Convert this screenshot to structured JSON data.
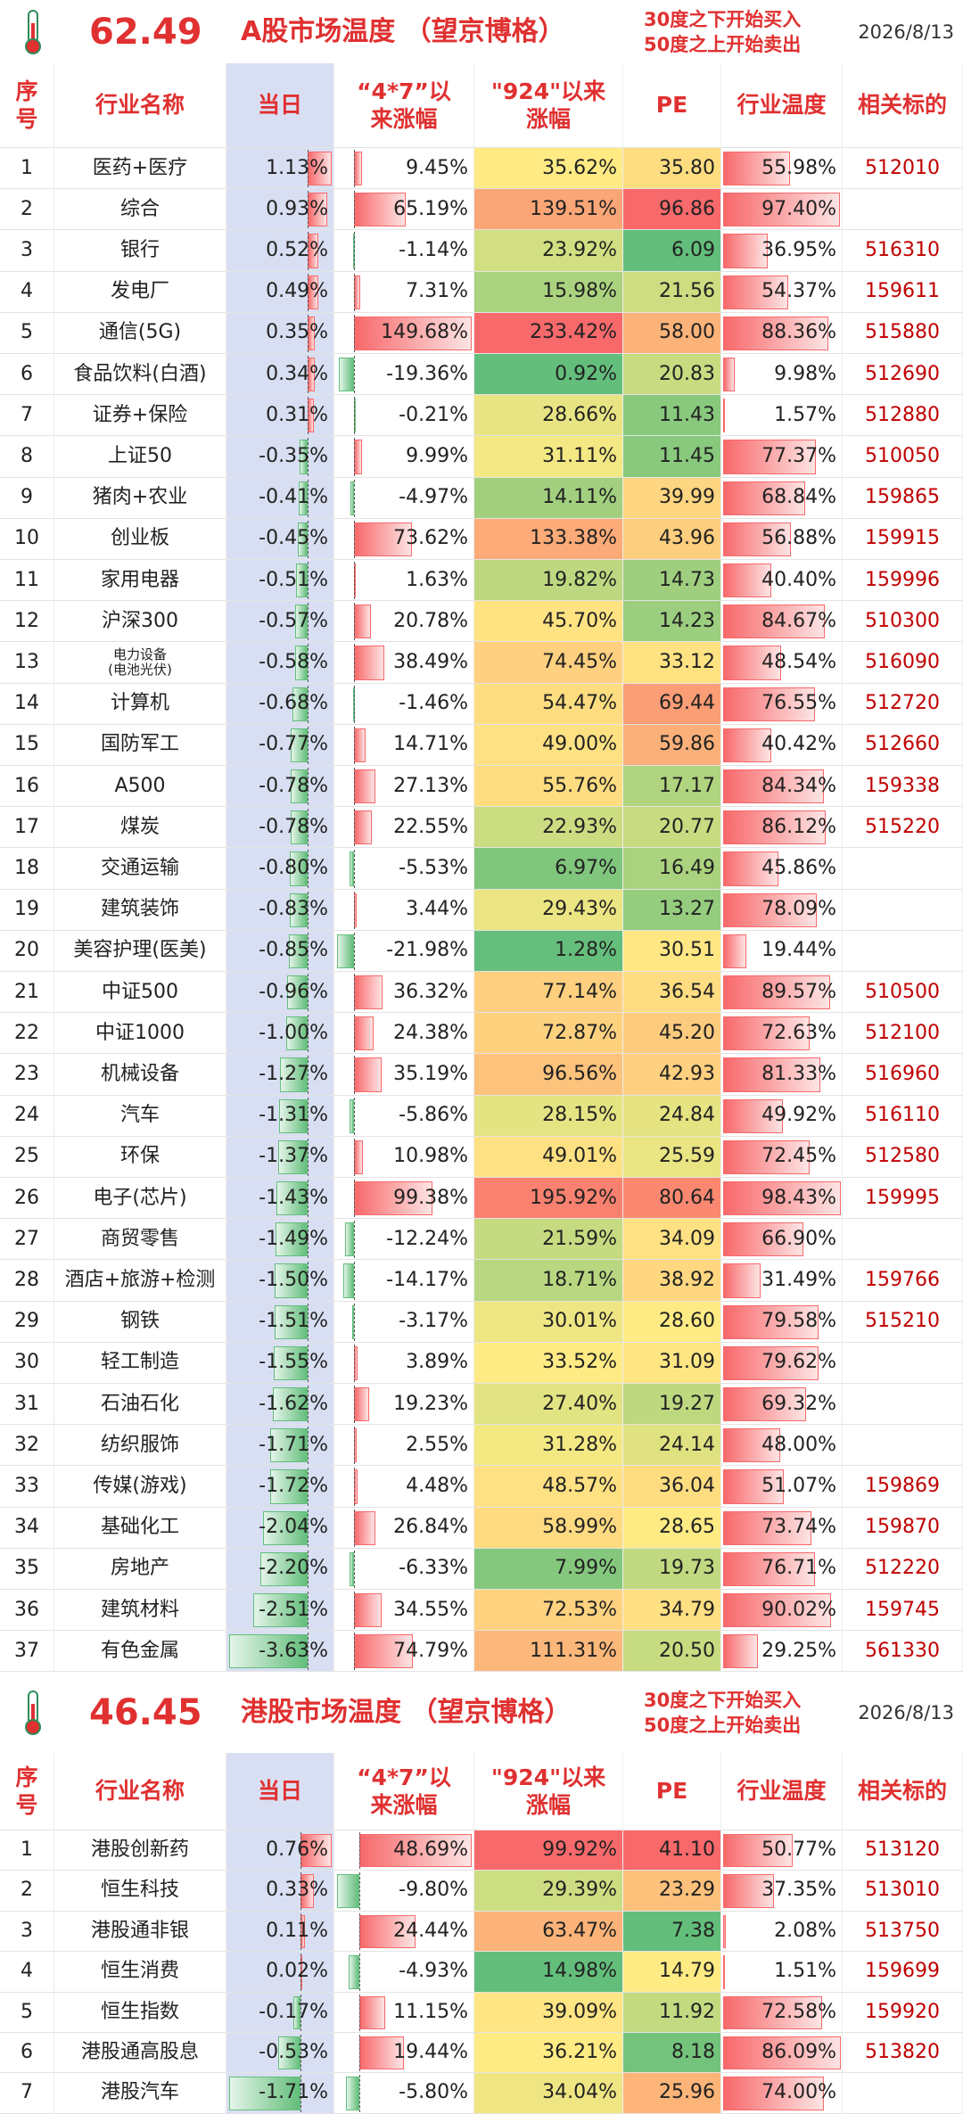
{
  "sections": [
    {
      "temperature": "62.49",
      "title": "A股市场温度 （望京博格）",
      "note": [
        "30度之下开始买入",
        "50度之上开始卖出"
      ],
      "date": "2026/8/13",
      "columns": [
        "序\n号",
        "行业名称",
        "当日",
        "“4*7”以\n来涨幅",
        "\"924\"以来\n涨幅",
        "PE",
        "行业温度",
        "相关标的"
      ],
      "rows": [
        [
          "1",
          "医药+医疗",
          "1.13%",
          "9.45%",
          "35.62%",
          "35.80",
          "55.98%",
          "512010"
        ],
        [
          "2",
          "综合",
          "0.93%",
          "65.19%",
          "139.51%",
          "96.86",
          "97.40%",
          null
        ],
        [
          "3",
          "银行",
          "0.52%",
          "-1.14%",
          "23.92%",
          "6.09",
          "36.95%",
          "516310"
        ],
        [
          "4",
          "发电厂",
          "0.49%",
          "7.31%",
          "15.98%",
          "21.56",
          "54.37%",
          "159611"
        ],
        [
          "5",
          "通信(5G)",
          "0.35%",
          "149.68%",
          "233.42%",
          "58.00",
          "88.36%",
          "515880"
        ],
        [
          "6",
          "食品饮料(白酒)",
          "0.34%",
          "-19.36%",
          "0.92%",
          "20.83",
          "9.98%",
          "512690"
        ],
        [
          "7",
          "证券+保险",
          "0.31%",
          "-0.21%",
          "28.66%",
          "11.43",
          "1.57%",
          "512880"
        ],
        [
          "8",
          "上证50",
          "-0.35%",
          "9.99%",
          "31.11%",
          "11.45",
          "77.37%",
          "510050"
        ],
        [
          "9",
          "猪肉+农业",
          "-0.41%",
          "-4.97%",
          "14.11%",
          "39.99",
          "68.84%",
          "159865"
        ],
        [
          "10",
          "创业板",
          "-0.45%",
          "73.62%",
          "133.38%",
          "43.96",
          "56.88%",
          "159915"
        ],
        [
          "11",
          "家用电器",
          "-0.51%",
          "1.63%",
          "19.82%",
          "14.73",
          "40.40%",
          "159996"
        ],
        [
          "12",
          "沪深300",
          "-0.57%",
          "20.78%",
          "45.70%",
          "14.23",
          "84.67%",
          "510300"
        ],
        [
          "13",
          "电力设备\n(电池光伏)",
          "-0.58%",
          "38.49%",
          "74.45%",
          "33.12",
          "48.54%",
          "516090"
        ],
        [
          "14",
          "计算机",
          "-0.68%",
          "-1.46%",
          "54.47%",
          "69.44",
          "76.55%",
          "512720"
        ],
        [
          "15",
          "国防军工",
          "-0.77%",
          "14.71%",
          "49.00%",
          "59.86",
          "40.42%",
          "512660"
        ],
        [
          "16",
          "A500",
          "-0.78%",
          "27.13%",
          "55.76%",
          "17.17",
          "84.34%",
          "159338"
        ],
        [
          "17",
          "煤炭",
          "-0.78%",
          "22.55%",
          "22.93%",
          "20.77",
          "86.12%",
          "515220"
        ],
        [
          "18",
          "交通运输",
          "-0.80%",
          "-5.53%",
          "6.97%",
          "16.49",
          "45.86%",
          null
        ],
        [
          "19",
          "建筑装饰",
          "-0.83%",
          "3.44%",
          "29.43%",
          "13.27",
          "78.09%",
          null
        ],
        [
          "20",
          "美容护理(医美)",
          "-0.85%",
          "-21.98%",
          "1.28%",
          "30.51",
          "19.44%",
          null
        ],
        [
          "21",
          "中证500",
          "-0.96%",
          "36.32%",
          "77.14%",
          "36.54",
          "89.57%",
          "510500"
        ],
        [
          "22",
          "中证1000",
          "-1.00%",
          "24.38%",
          "72.87%",
          "45.20",
          "72.63%",
          "512100"
        ],
        [
          "23",
          "机械设备",
          "-1.27%",
          "35.19%",
          "96.56%",
          "42.93",
          "81.33%",
          "516960"
        ],
        [
          "24",
          "汽车",
          "-1.31%",
          "-5.86%",
          "28.15%",
          "24.84",
          "49.92%",
          "516110"
        ],
        [
          "25",
          "环保",
          "-1.37%",
          "10.98%",
          "49.01%",
          "25.59",
          "72.45%",
          "512580"
        ],
        [
          "26",
          "电子(芯片)",
          "-1.43%",
          "99.38%",
          "195.92%",
          "80.64",
          "98.43%",
          "159995"
        ],
        [
          "27",
          "商贸零售",
          "-1.49%",
          "-12.24%",
          "21.59%",
          "34.09",
          "66.90%",
          null
        ],
        [
          "28",
          "酒店+旅游+检测",
          "-1.50%",
          "-14.17%",
          "18.71%",
          "38.92",
          "31.49%",
          "159766"
        ],
        [
          "29",
          "钢铁",
          "-1.51%",
          "-3.17%",
          "30.01%",
          "28.60",
          "79.58%",
          "515210"
        ],
        [
          "30",
          "轻工制造",
          "-1.55%",
          "3.89%",
          "33.52%",
          "31.09",
          "79.62%",
          null
        ],
        [
          "31",
          "石油石化",
          "-1.62%",
          "19.23%",
          "27.40%",
          "19.27",
          "69.32%",
          null
        ],
        [
          "32",
          "纺织服饰",
          "-1.71%",
          "2.55%",
          "31.28%",
          "24.14",
          "48.00%",
          null
        ],
        [
          "33",
          "传媒(游戏)",
          "-1.72%",
          "4.48%",
          "48.57%",
          "36.04",
          "51.07%",
          "159869"
        ],
        [
          "34",
          "基础化工",
          "-2.04%",
          "26.84%",
          "58.99%",
          "28.65",
          "73.74%",
          "159870"
        ],
        [
          "35",
          "房地产",
          "-2.20%",
          "-6.33%",
          "7.99%",
          "19.73",
          "76.71%",
          "512220"
        ],
        [
          "36",
          "建筑材料",
          "-2.51%",
          "34.55%",
          "72.53%",
          "34.79",
          "90.02%",
          "159745"
        ],
        [
          "37",
          "有色金属",
          "-3.63%",
          "74.79%",
          "111.31%",
          "20.50",
          "29.25%",
          "561330"
        ]
      ]
    },
    {
      "temperature": "46.45",
      "title": "港股市场温度 （望京博格）",
      "note": [
        "30度之下开始买入",
        "50度之上开始卖出"
      ],
      "date": "2026/8/13",
      "columns": [
        "序\n号",
        "行业名称",
        "当日",
        "“4*7”以\n来涨幅",
        "\"924\"以来\n涨幅",
        "PE",
        "行业温度",
        "相关标的"
      ],
      "rows": [
        [
          "1",
          "港股创新药",
          "0.76%",
          "48.69%",
          "99.92%",
          "41.10",
          "50.77%",
          "513120"
        ],
        [
          "2",
          "恒生科技",
          "0.33%",
          "-9.80%",
          "29.39%",
          "23.29",
          "37.35%",
          "513010"
        ],
        [
          "3",
          "港股通非银",
          "0.11%",
          "24.44%",
          "63.47%",
          "7.38",
          "2.08%",
          "513750"
        ],
        [
          "4",
          "恒生消费",
          "0.02%",
          "-4.93%",
          "14.98%",
          "14.79",
          "1.51%",
          "159699"
        ],
        [
          "5",
          "恒生指数",
          "-0.17%",
          "11.15%",
          "39.09%",
          "11.92",
          "72.58%",
          "159920"
        ],
        [
          "6",
          "港股通高股息",
          "-0.53%",
          "19.44%",
          "36.21%",
          "8.18",
          "86.09%",
          "513820"
        ],
        [
          "7",
          "港股汽车",
          "-1.71%",
          "-5.80%",
          "34.04%",
          "25.96",
          "74.00%",
          null
        ]
      ]
    }
  ]
}
